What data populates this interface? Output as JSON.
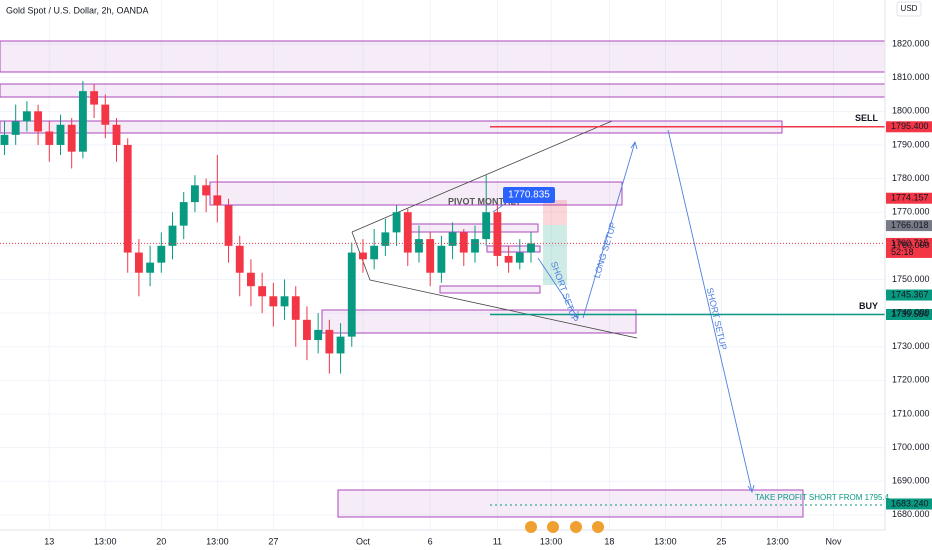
{
  "chart_data": {
    "type": "candlestick",
    "title": "Gold Spot / U.S. Dollar, 2h, OANDA",
    "currency": "USD",
    "up_color": "#089981",
    "down_color": "#f23645",
    "xlim": [
      -2.2,
      37.3
    ],
    "ylim": [
      1675.5,
      1833.1
    ],
    "xticks": [
      {
        "value": 0,
        "label": "13"
      },
      {
        "value": 2.5,
        "label": "13:00"
      },
      {
        "value": 5,
        "label": "20"
      },
      {
        "value": 7.5,
        "label": "13:00"
      },
      {
        "value": 10,
        "label": "27"
      },
      {
        "value": 14,
        "label": "Oct"
      },
      {
        "value": 17,
        "label": "6"
      },
      {
        "value": 20,
        "label": "11"
      },
      {
        "value": 22.4,
        "label": "13:00"
      },
      {
        "value": 25,
        "label": "18"
      },
      {
        "value": 27.5,
        "label": "13:00"
      },
      {
        "value": 30,
        "label": "25"
      },
      {
        "value": 32.5,
        "label": "13:00"
      },
      {
        "value": 35,
        "label": "Nov"
      }
    ],
    "yticks": [
      {
        "value": 1680,
        "label": "1680.000"
      },
      {
        "value": 1690,
        "label": "1690.000"
      },
      {
        "value": 1700,
        "label": "1700.000"
      },
      {
        "value": 1710,
        "label": "1710.000"
      },
      {
        "value": 1720,
        "label": "1720.000"
      },
      {
        "value": 1730,
        "label": "1730.000"
      },
      {
        "value": 1740,
        "label": "1740.000"
      },
      {
        "value": 1750,
        "label": "1750.000"
      },
      {
        "value": 1760,
        "label": "1760.000"
      },
      {
        "value": 1770,
        "label": "1770.000"
      },
      {
        "value": 1780,
        "label": "1780.000"
      },
      {
        "value": 1790,
        "label": "1790.000"
      },
      {
        "value": 1800,
        "label": "1800.000"
      },
      {
        "value": 1810,
        "label": "1810.000"
      },
      {
        "value": 1820,
        "label": "1820.000"
      }
    ],
    "x": [
      -2,
      -1.5,
      -1,
      -0.5,
      0,
      0.5,
      1,
      1.5,
      2,
      2.5,
      3,
      3.5,
      4,
      4.5,
      5,
      5.5,
      6,
      6.5,
      7,
      7.5,
      8,
      8.5,
      9,
      9.5,
      10,
      10.5,
      11,
      11.5,
      12,
      12.5,
      13,
      13.5,
      14,
      14.5,
      15,
      15.5,
      16,
      16.5,
      17,
      17.5,
      18,
      18.5,
      19,
      19.5,
      20,
      20.5,
      21,
      21.5
    ],
    "candles": [
      {
        "open": 1790,
        "high": 1797,
        "low": 1787,
        "close": 1793
      },
      {
        "open": 1793,
        "high": 1802,
        "low": 1790,
        "close": 1797
      },
      {
        "open": 1797,
        "high": 1803,
        "low": 1794,
        "close": 1800
      },
      {
        "open": 1800,
        "high": 1802,
        "low": 1790,
        "close": 1794
      },
      {
        "open": 1794,
        "high": 1797,
        "low": 1785,
        "close": 1790
      },
      {
        "open": 1790,
        "high": 1799,
        "low": 1787,
        "close": 1796
      },
      {
        "open": 1796,
        "high": 1798,
        "low": 1783,
        "close": 1788
      },
      {
        "open": 1788,
        "high": 1809,
        "low": 1786,
        "close": 1806
      },
      {
        "open": 1806,
        "high": 1808,
        "low": 1798,
        "close": 1802
      },
      {
        "open": 1802,
        "high": 1805,
        "low": 1792,
        "close": 1796
      },
      {
        "open": 1796,
        "high": 1798,
        "low": 1785,
        "close": 1790
      },
      {
        "open": 1790,
        "high": 1792,
        "low": 1752,
        "close": 1758
      },
      {
        "open": 1758,
        "high": 1762,
        "low": 1745,
        "close": 1752
      },
      {
        "open": 1752,
        "high": 1760,
        "low": 1748,
        "close": 1755
      },
      {
        "open": 1755,
        "high": 1764,
        "low": 1752,
        "close": 1760
      },
      {
        "open": 1760,
        "high": 1770,
        "low": 1756,
        "close": 1766
      },
      {
        "open": 1766,
        "high": 1776,
        "low": 1762,
        "close": 1773
      },
      {
        "open": 1773,
        "high": 1781,
        "low": 1770,
        "close": 1778
      },
      {
        "open": 1778,
        "high": 1780,
        "low": 1770,
        "close": 1775
      },
      {
        "open": 1775,
        "high": 1787,
        "low": 1767,
        "close": 1772
      },
      {
        "open": 1772,
        "high": 1774,
        "low": 1755,
        "close": 1760
      },
      {
        "open": 1760,
        "high": 1763,
        "low": 1745,
        "close": 1752
      },
      {
        "open": 1752,
        "high": 1756,
        "low": 1742,
        "close": 1748
      },
      {
        "open": 1748,
        "high": 1752,
        "low": 1740,
        "close": 1745
      },
      {
        "open": 1745,
        "high": 1749,
        "low": 1736,
        "close": 1742
      },
      {
        "open": 1742,
        "high": 1750,
        "low": 1738,
        "close": 1745
      },
      {
        "open": 1745,
        "high": 1748,
        "low": 1730,
        "close": 1738
      },
      {
        "open": 1738,
        "high": 1742,
        "low": 1726,
        "close": 1732
      },
      {
        "open": 1732,
        "high": 1740,
        "low": 1728,
        "close": 1735
      },
      {
        "open": 1735,
        "high": 1738,
        "low": 1722,
        "close": 1728
      },
      {
        "open": 1728,
        "high": 1737,
        "low": 1722,
        "close": 1733
      },
      {
        "open": 1733,
        "high": 1761,
        "low": 1730,
        "close": 1758
      },
      {
        "open": 1758,
        "high": 1762,
        "low": 1752,
        "close": 1756
      },
      {
        "open": 1756,
        "high": 1765,
        "low": 1753,
        "close": 1760
      },
      {
        "open": 1760,
        "high": 1768,
        "low": 1757,
        "close": 1764
      },
      {
        "open": 1764,
        "high": 1772,
        "low": 1760,
        "close": 1770
      },
      {
        "open": 1770,
        "high": 1771,
        "low": 1754,
        "close": 1758
      },
      {
        "open": 1758,
        "high": 1766,
        "low": 1755,
        "close": 1762
      },
      {
        "open": 1762,
        "high": 1764,
        "low": 1748,
        "close": 1752
      },
      {
        "open": 1752,
        "high": 1763,
        "low": 1749,
        "close": 1760
      },
      {
        "open": 1760,
        "high": 1767,
        "low": 1756,
        "close": 1764
      },
      {
        "open": 1764,
        "high": 1765,
        "low": 1754,
        "close": 1758
      },
      {
        "open": 1758,
        "high": 1766,
        "low": 1755,
        "close": 1762
      },
      {
        "open": 1762,
        "high": 1781,
        "low": 1760,
        "close": 1770
      },
      {
        "open": 1770,
        "high": 1772,
        "low": 1754,
        "close": 1757
      },
      {
        "open": 1757,
        "high": 1760,
        "low": 1752,
        "close": 1755
      },
      {
        "open": 1755,
        "high": 1762,
        "low": 1753,
        "close": 1758
      },
      {
        "open": 1758,
        "high": 1764,
        "low": 1755,
        "close": 1760.715
      }
    ],
    "price_labels": [
      {
        "value": 1795.4,
        "label": "1795.400",
        "color": "#f23645",
        "name": "SELL"
      },
      {
        "value": 1774.157,
        "label": "1774.157",
        "color": "#f23645"
      },
      {
        "value": 1766.018,
        "label": "1766.018",
        "color": "#787b86"
      },
      {
        "value": 1760.715,
        "label": "1760.715",
        "color": "#f23645",
        "countdown": "52:18"
      },
      {
        "value": 1745.367,
        "label": "1745.367",
        "color": "#089981"
      },
      {
        "value": 1739.584,
        "label": "1739.584",
        "color": "#089981",
        "name": "BUY"
      },
      {
        "value": 1683.24,
        "label": "1683.240",
        "color": "#089981"
      }
    ],
    "annotations": {
      "pivot": "PIVOT MONTHLY",
      "pivot_price": "1770.835",
      "short_setup_1": "SHORT SETUP",
      "long_setup": "LONG SETUP",
      "short_setup_2": "SHORT SETUP",
      "take_profit": "TAKE PROFIT SHORT FROM 1795.4"
    }
  }
}
